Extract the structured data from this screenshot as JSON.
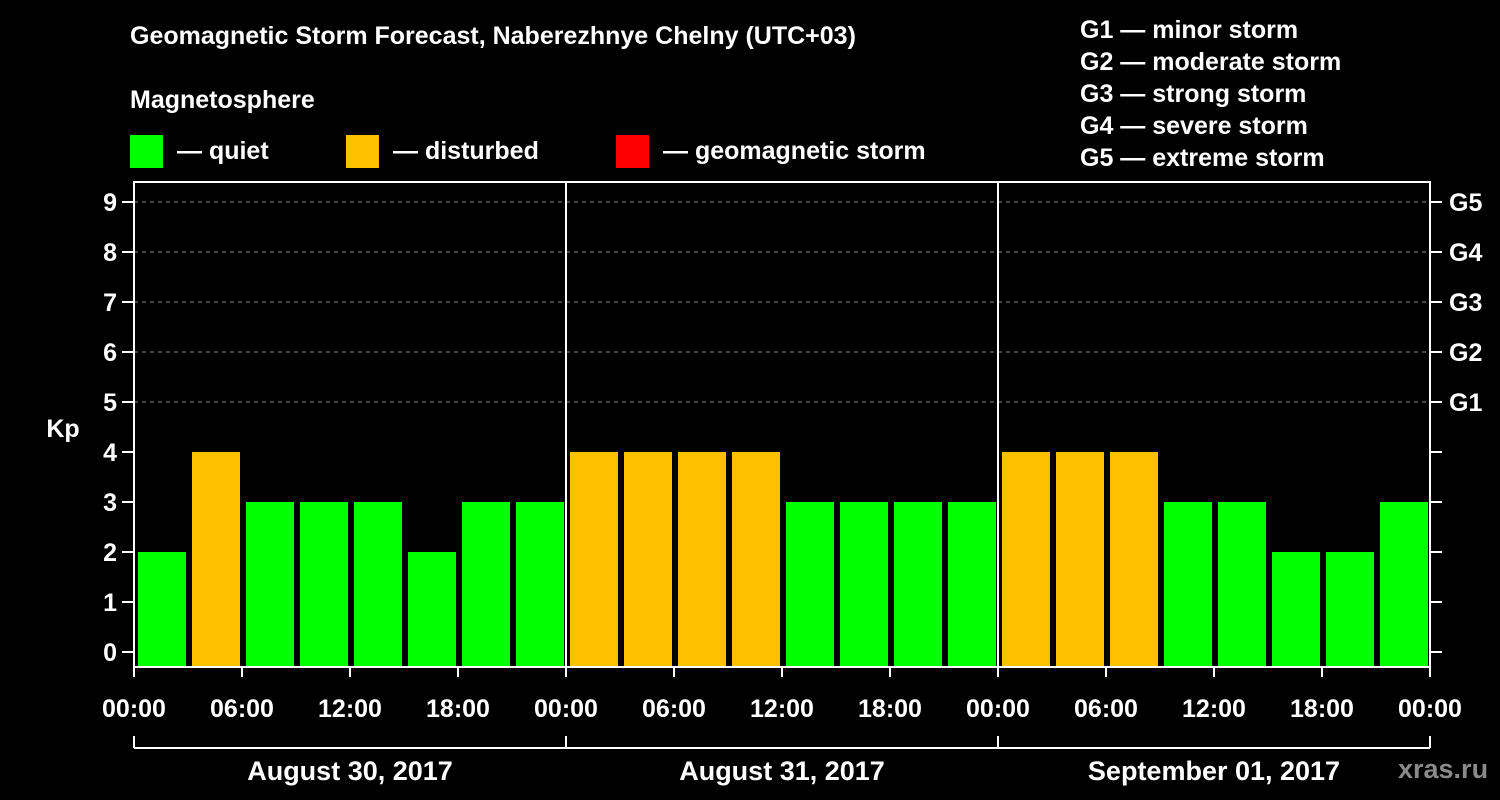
{
  "chart_data": {
    "type": "bar",
    "title": "Geomagnetic Storm Forecast, Naberezhnye Chelny (UTC+03)",
    "ylabel": "Kp",
    "ylim": [
      0,
      9
    ],
    "yticks": [
      "0",
      "1",
      "2",
      "3",
      "4",
      "5",
      "6",
      "7",
      "8",
      "9"
    ],
    "right_ticks": [
      {
        "kp": 5,
        "label": "G1"
      },
      {
        "kp": 6,
        "label": "G2"
      },
      {
        "kp": 7,
        "label": "G3"
      },
      {
        "kp": 8,
        "label": "G4"
      },
      {
        "kp": 9,
        "label": "G5"
      }
    ],
    "xtick_labels": [
      "00:00",
      "06:00",
      "12:00",
      "18:00",
      "00:00",
      "06:00",
      "12:00",
      "18:00",
      "00:00",
      "06:00",
      "12:00",
      "18:00",
      "00:00"
    ],
    "days": [
      "August 30, 2017",
      "August 31, 2017",
      "September 01, 2017"
    ],
    "values": [
      2,
      4,
      3,
      3,
      3,
      2,
      3,
      3,
      4,
      4,
      4,
      4,
      3,
      3,
      3,
      3,
      4,
      4,
      4,
      3,
      3,
      2,
      2,
      3
    ],
    "grid": "dashed horizontal at Kp 5-9",
    "colors": {
      "quiet": "#00ff00",
      "disturbed": "#ffc000",
      "storm": "#ff0000"
    }
  },
  "magnetosphere": {
    "title": "Magnetosphere",
    "legend": [
      {
        "label": "— quiet",
        "color": "#00ff00"
      },
      {
        "label": "— disturbed",
        "color": "#ffc000"
      },
      {
        "label": "— geomagnetic storm",
        "color": "#ff0000"
      }
    ]
  },
  "storm_scale": [
    "G1 — minor storm",
    "G2 — moderate storm",
    "G3 — strong storm",
    "G4 — severe storm",
    "G5 — extreme storm"
  ],
  "watermark": "xras.ru"
}
